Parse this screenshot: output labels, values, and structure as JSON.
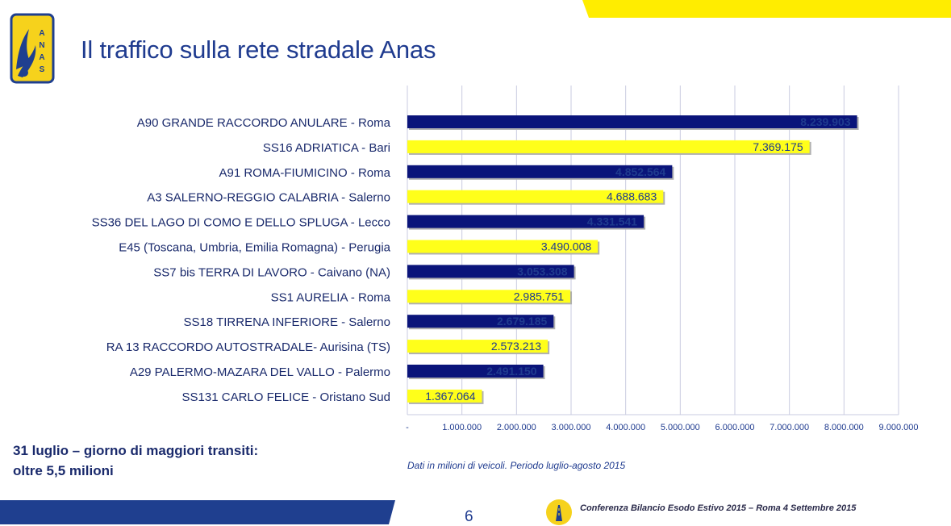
{
  "header": {
    "title": "Il traffico sulla rete stradale Anas",
    "logo_text": "ANAS"
  },
  "colors": {
    "navy": "#0a147a",
    "yellow": "#ffff1a",
    "title_blue": "#1f3b8f",
    "stripe_yellow": "#ffed00"
  },
  "chart_data": {
    "type": "bar",
    "orientation": "horizontal",
    "categories": [
      "A90 GRANDE RACCORDO ANULARE - Roma",
      "SS16 ADRIATICA - Bari",
      "A91 ROMA-FIUMICINO - Roma",
      "A3 SALERNO-REGGIO CALABRIA - Salerno",
      "SS36 DEL LAGO DI COMO E DELLO SPLUGA - Lecco",
      "E45 (Toscana, Umbria, Emilia Romagna) - Perugia",
      "SS7 bis  TERRA DI LAVORO - Caivano (NA)",
      "SS1 AURELIA - Roma",
      "SS18 TIRRENA INFERIORE - Salerno",
      "RA 13 RACCORDO AUTOSTRADALE- Aurisina (TS)",
      "A29 PALERMO-MAZARA DEL VALLO - Palermo",
      "SS131 CARLO FELICE - Oristano Sud"
    ],
    "values": [
      8239903,
      7369175,
      4852564,
      4688683,
      4331541,
      3490008,
      3053308,
      2985751,
      2679185,
      2573213,
      2491150,
      1367064
    ],
    "value_labels": [
      "8.239.903",
      "7.369.175",
      "4.852.564",
      "4.688.683",
      "4.331.541",
      "3.490.008",
      "3.053.308",
      "2.985.751",
      "2.679.185",
      "2.573.213",
      "2.491.150",
      "1.367.064"
    ],
    "bar_colors": [
      "navy",
      "yellow",
      "navy",
      "yellow",
      "navy",
      "yellow",
      "navy",
      "yellow",
      "navy",
      "yellow",
      "navy",
      "yellow"
    ],
    "xlim": [
      0,
      9000000
    ],
    "x_ticks": [
      0,
      1000000,
      2000000,
      3000000,
      4000000,
      5000000,
      6000000,
      7000000,
      8000000,
      9000000
    ],
    "x_tick_labels": [
      "-",
      "1.000.000",
      "2.000.000",
      "3.000.000",
      "4.000.000",
      "5.000.000",
      "6.000.000",
      "7.000.000",
      "8.000.000",
      "9.000.000"
    ],
    "grid": "vertical",
    "legend": "none"
  },
  "notes": {
    "highlight_line1": "31 luglio – giorno di maggiori transiti:",
    "highlight_line2": "oltre 5,5 milioni",
    "source": "Dati in milioni di veicoli. Periodo luglio-agosto 2015"
  },
  "footer": {
    "page_number": "6",
    "conference": "Conferenza Bilancio Esodo Estivo 2015 – Roma 4 Settembre 2015"
  }
}
